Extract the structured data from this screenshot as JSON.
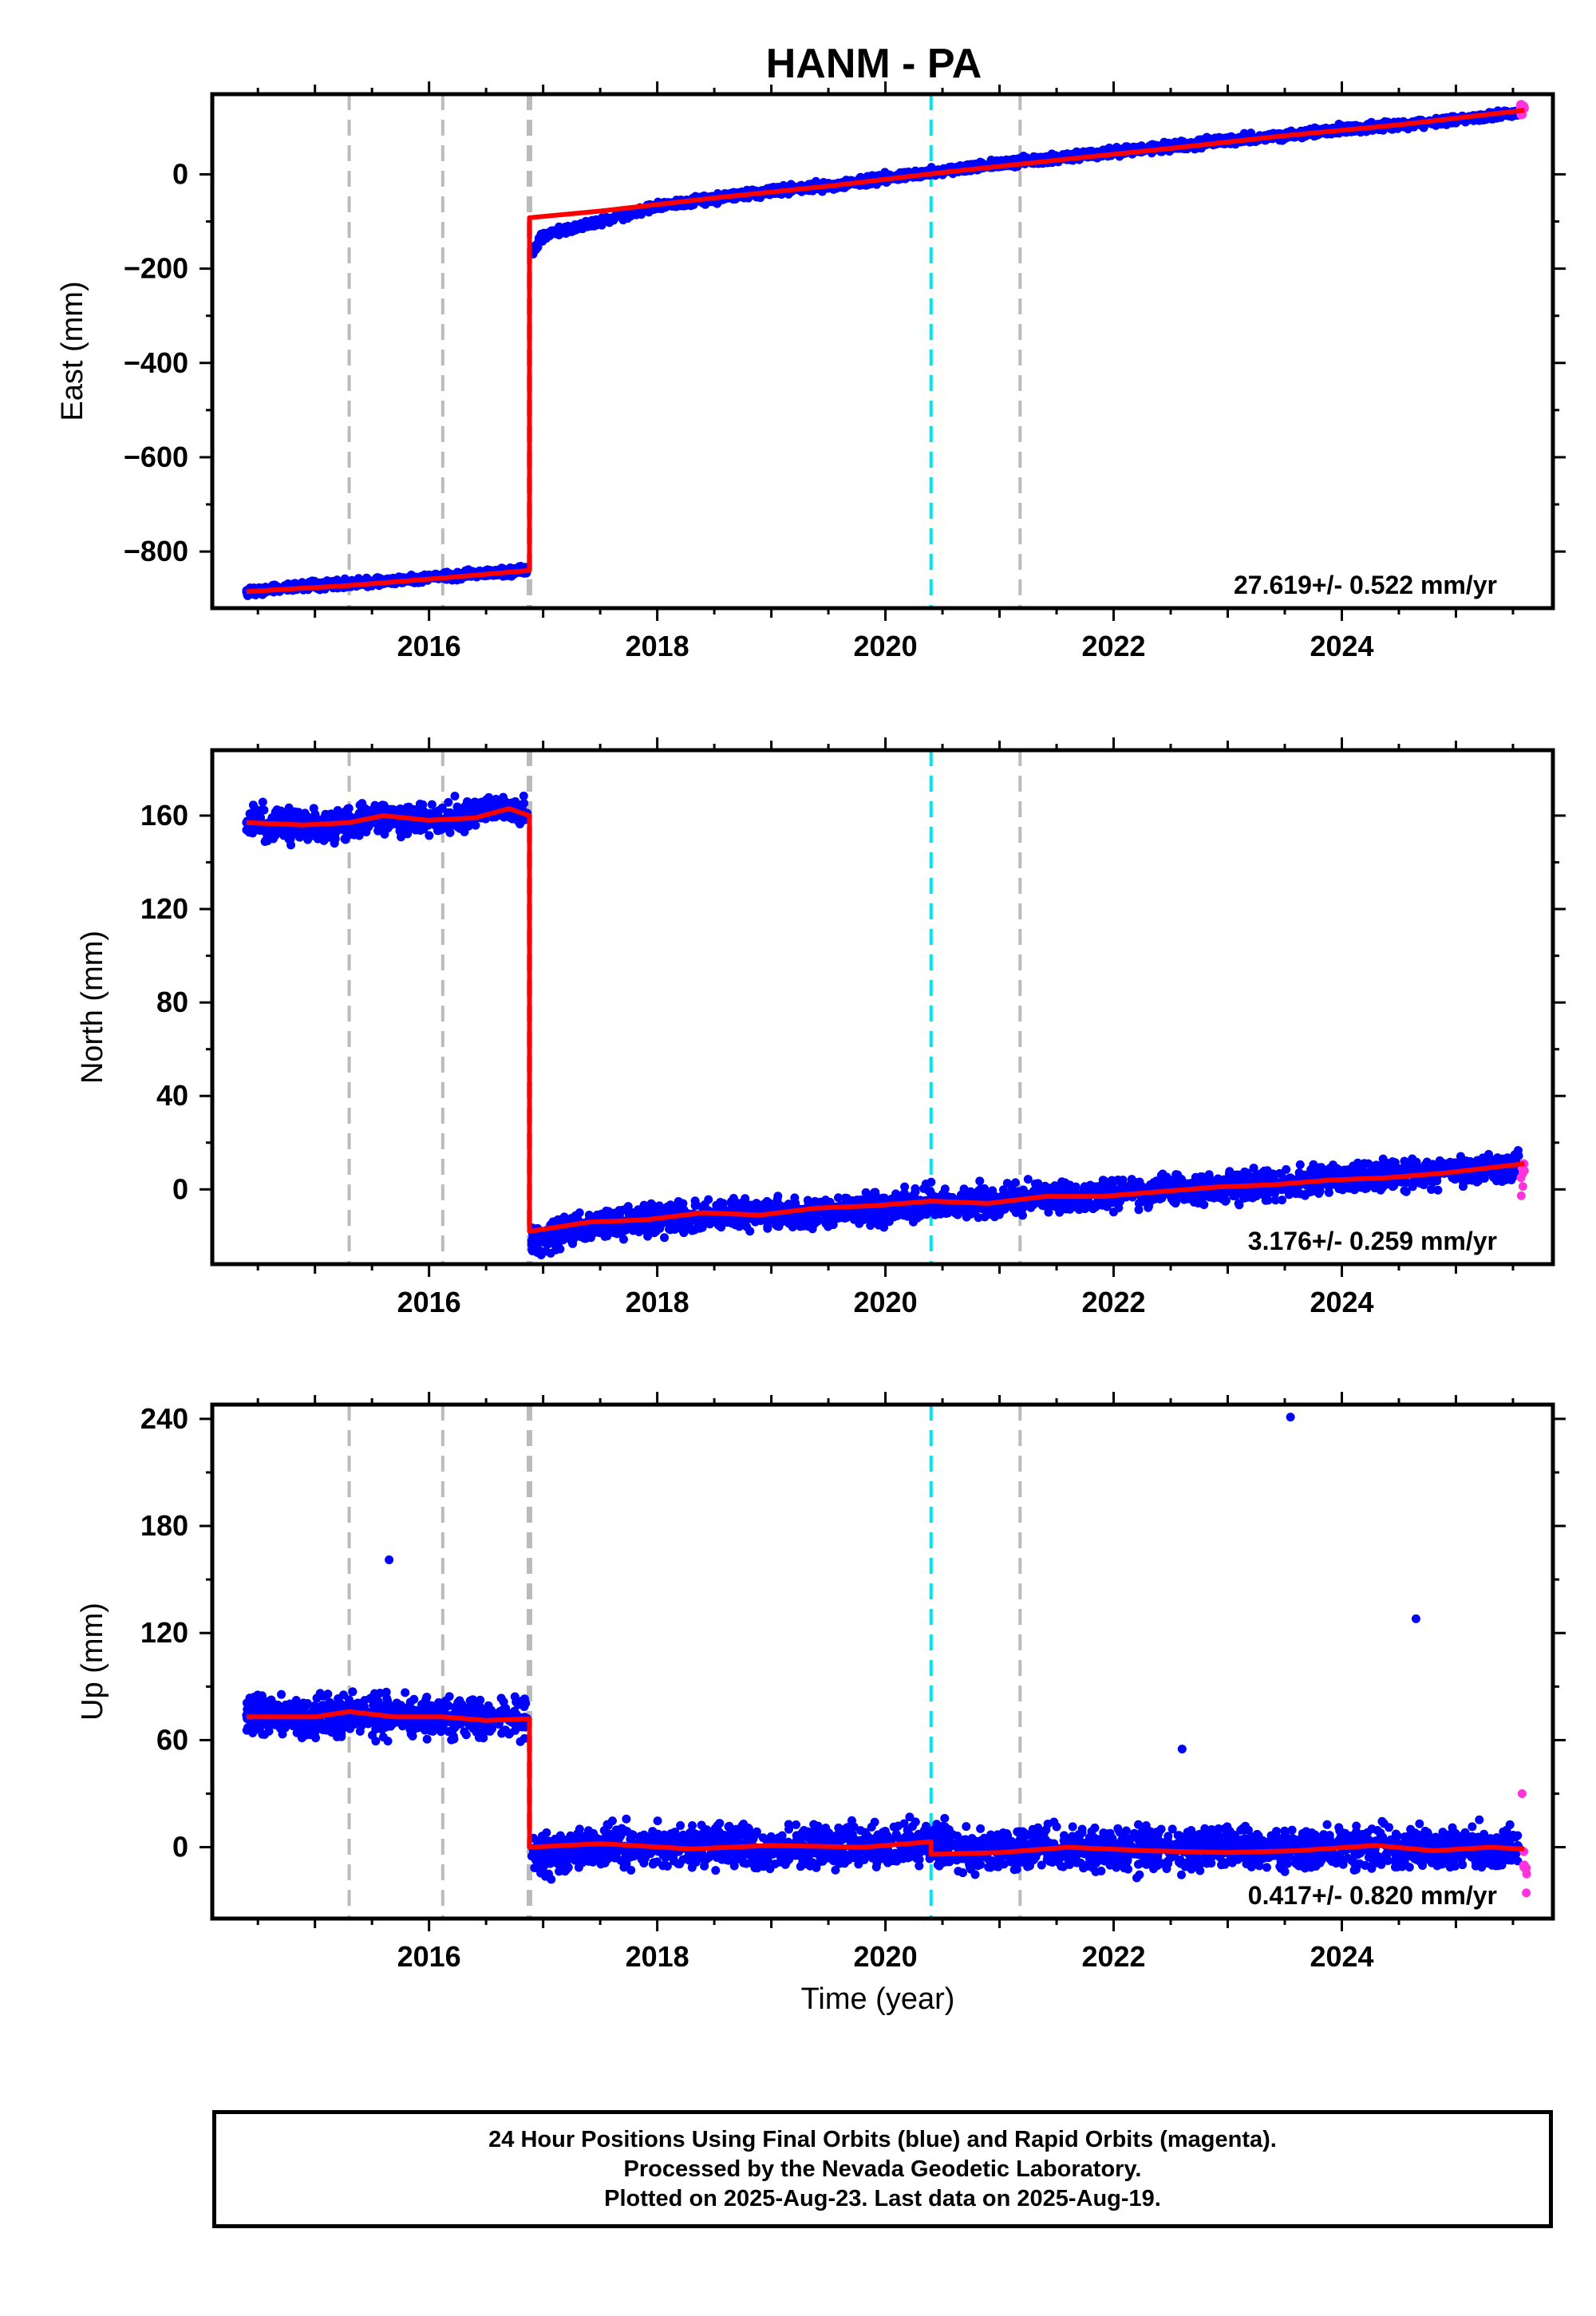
{
  "title": "HANM - PA",
  "xlabel": "Time (year)",
  "colors": {
    "final": "#0000ff",
    "rapid": "#ff33dd",
    "model": "#ff0000",
    "cyan_line": "#00e5ee",
    "gray_line": "#bbbbbb"
  },
  "footer": {
    "line1": "24 Hour Positions Using Final Orbits (blue) and Rapid Orbits (magenta).",
    "line2": "Processed by the Nevada Geodetic Laboratory.",
    "line3": "Plotted on 2025-Aug-23. Last data on 2025-Aug-19."
  },
  "chart_data": [
    {
      "type": "scatter",
      "ylabel": "East (mm)",
      "xlim": [
        2014.1,
        2025.85
      ],
      "ylim": [
        -920,
        170
      ],
      "xticks": [
        "2016",
        "2018",
        "2020",
        "2022",
        "2024"
      ],
      "yticks": [
        "0",
        "−200",
        "−400",
        "−600",
        "−800"
      ],
      "annotation": "27.619+/- 0.522 mm/yr",
      "vlines_gray": [
        2015.3,
        2016.12
      ],
      "vline_step": 2016.88,
      "vline_cyan": 2020.4,
      "vline_gray_after": 2021.18,
      "series": [
        {
          "name": "Final Orbits",
          "x": [
            2014.4,
            2015.0,
            2015.5,
            2016.0,
            2016.5,
            2016.86
          ],
          "y": [
            -885,
            -872,
            -866,
            -855,
            -845,
            -840
          ]
        },
        {
          "name": "Final Orbits",
          "x": [
            2016.9,
            2017.0,
            2017.5,
            2018.0,
            2018.5,
            2019.0,
            2019.5,
            2020.0,
            2020.5,
            2021.0,
            2021.5,
            2022.0,
            2022.5,
            2023.0,
            2023.5,
            2024.0,
            2024.5,
            2025.0,
            2025.55
          ],
          "y": [
            -165,
            -130,
            -100,
            -68,
            -52,
            -35,
            -25,
            -8,
            8,
            22,
            34,
            48,
            58,
            72,
            82,
            96,
            104,
            116,
            130
          ]
        },
        {
          "name": "Rapid Orbits",
          "x": [
            2025.56,
            2025.6
          ],
          "y": [
            136,
            142
          ]
        }
      ],
      "model": {
        "x": [
          2014.4,
          2015.3,
          2016.12,
          2016.88,
          2016.88,
          2017.5,
          2018.5,
          2019.5,
          2020.5,
          2021.5,
          2022.5,
          2023.5,
          2024.5,
          2025.6
        ],
        "y": [
          -885,
          -872,
          -856,
          -840,
          -92,
          -78,
          -50,
          -25,
          4,
          30,
          55,
          82,
          105,
          136
        ]
      }
    },
    {
      "type": "scatter",
      "ylabel": "North (mm)",
      "xlim": [
        2014.1,
        2025.85
      ],
      "ylim": [
        -32,
        188
      ],
      "xticks": [
        "2016",
        "2018",
        "2020",
        "2022",
        "2024"
      ],
      "yticks": [
        "160",
        "120",
        "80",
        "40",
        "0"
      ],
      "annotation": "3.176+/- 0.259 mm/yr",
      "vlines_gray": [
        2015.3,
        2016.12
      ],
      "vline_step": 2016.88,
      "vline_cyan": 2020.4,
      "vline_gray_after": 2021.18,
      "series": [
        {
          "name": "Final Orbits",
          "x": [
            2014.4,
            2014.8,
            2015.2,
            2015.5,
            2015.9,
            2016.3,
            2016.6,
            2016.86
          ],
          "y": [
            157,
            156,
            155,
            160,
            158,
            159,
            164,
            161
          ]
        },
        {
          "name": "Final Orbits",
          "x": [
            2016.9,
            2017.3,
            2017.8,
            2018.3,
            2018.8,
            2019.3,
            2019.8,
            2020.3,
            2020.8,
            2021.3,
            2021.8,
            2022.3,
            2022.8,
            2023.3,
            2023.8,
            2024.3,
            2024.8,
            2025.55
          ],
          "y": [
            -22,
            -17,
            -13,
            -12,
            -10,
            -11,
            -8,
            -6,
            -5,
            -4,
            -2,
            -1,
            1,
            2,
            4,
            6,
            7,
            10
          ]
        },
        {
          "name": "Rapid Orbits",
          "x": [
            2025.57,
            2025.6
          ],
          "y": [
            5,
            8
          ]
        }
      ],
      "model": {
        "x": [
          2014.4,
          2014.9,
          2015.3,
          2015.6,
          2016.0,
          2016.4,
          2016.7,
          2016.88,
          2016.88,
          2017.4,
          2017.9,
          2018.4,
          2018.9,
          2019.4,
          2019.9,
          2020.4,
          2020.9,
          2021.4,
          2021.9,
          2022.4,
          2022.9,
          2023.4,
          2023.9,
          2024.4,
          2024.9,
          2025.6
        ],
        "y": [
          157,
          156,
          157,
          160,
          158,
          159,
          163,
          160,
          -18,
          -14,
          -13,
          -10,
          -11,
          -8,
          -7,
          -5,
          -6,
          -3,
          -3,
          -1,
          1,
          2,
          4,
          5,
          7,
          11
        ]
      }
    },
    {
      "type": "scatter",
      "ylabel": "Up (mm)",
      "xlim": [
        2014.1,
        2025.85
      ],
      "ylim": [
        -40,
        248
      ],
      "xticks": [
        "2016",
        "2018",
        "2020",
        "2022",
        "2024"
      ],
      "yticks": [
        "240",
        "180",
        "120",
        "60",
        "0"
      ],
      "annotation": "0.417+/- 0.820 mm/yr",
      "vlines_gray": [
        2015.3,
        2016.12
      ],
      "vline_step": 2016.88,
      "vline_cyan": 2020.4,
      "vline_gray_after": 2021.18,
      "series": [
        {
          "name": "Final Orbits",
          "x": [
            2014.4,
            2014.9,
            2015.3,
            2015.65,
            2016.0,
            2016.5,
            2016.86
          ],
          "y": [
            74,
            73,
            75,
            161,
            73,
            72,
            72
          ]
        },
        {
          "name": "Final Orbits",
          "x": [
            2016.9,
            2017.4,
            2018.0,
            2018.5,
            2019.0,
            2019.5,
            2020.0,
            2020.4,
            2020.8,
            2021.3,
            2021.7,
            2022.3,
            2022.6,
            2023.0,
            2023.55,
            2024.0,
            2024.65,
            2025.0,
            2025.55
          ],
          "y": [
            -5,
            1,
            0,
            2,
            -1,
            1,
            0,
            3,
            -3,
            0,
            -2,
            0,
            55,
            -2,
            241,
            -1,
            128,
            -1,
            0
          ]
        },
        {
          "name": "Rapid Orbits",
          "x": [
            2025.58,
            2025.6,
            2025.62
          ],
          "y": [
            30,
            -10,
            -15
          ]
        }
      ],
      "model": {
        "x": [
          2014.4,
          2015.0,
          2015.3,
          2015.7,
          2016.12,
          2016.5,
          2016.88,
          2016.88,
          2017.5,
          2018.3,
          2019.0,
          2019.8,
          2020.4,
          2020.4,
          2021.0,
          2021.6,
          2022.3,
          2023.0,
          2023.6,
          2024.3,
          2024.8,
          2025.3,
          2025.6
        ],
        "y": [
          73,
          73,
          76,
          73,
          73,
          71,
          72,
          0,
          2,
          -1,
          1,
          0,
          3,
          -4,
          -3,
          0,
          -2,
          -3,
          -2,
          1,
          -2,
          0,
          -1
        ]
      }
    }
  ]
}
